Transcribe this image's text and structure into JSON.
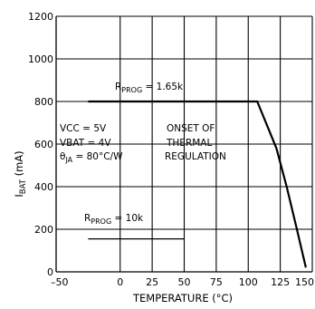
{
  "chart_data": {
    "type": "line",
    "title": "",
    "xlabel": "TEMPERATURE (°C)",
    "ylabel_main": "I",
    "ylabel_sub": "BAT",
    "ylabel_unit": " (mA)",
    "xlim": [
      -50,
      150
    ],
    "ylim": [
      0,
      1200
    ],
    "x_ticks": [
      -50,
      0,
      25,
      50,
      75,
      100,
      125,
      150
    ],
    "x_tick_labels": [
      "–50",
      "0",
      "25",
      "50",
      "75",
      "100",
      "125",
      "150"
    ],
    "y_ticks": [
      0,
      200,
      400,
      600,
      800,
      1000,
      1200
    ],
    "y_tick_labels": [
      "0",
      "200",
      "400",
      "600",
      "800",
      "1000",
      "1200"
    ],
    "grid": true,
    "series": [
      {
        "name": "RPROG = 1.65k",
        "x": [
          -25,
          107,
          122,
          130,
          138,
          145
        ],
        "y": [
          800,
          800,
          580,
          400,
          200,
          20
        ]
      },
      {
        "name": "RPROG = 10k",
        "x": [
          -25,
          50
        ],
        "y": [
          155,
          155
        ]
      }
    ],
    "annotations": {
      "series1_label": {
        "pre": "R",
        "sub": "PROG",
        "post": " = 1.65k"
      },
      "series2_label": {
        "pre": "R",
        "sub": "PROG",
        "post": " = 10k"
      },
      "cond1": "VCC = 5V",
      "cond2": "VBAT = 4V",
      "cond3": {
        "pre": "θ",
        "sub": "JA",
        "post": " = 80°C/W"
      },
      "onset1": "ONSET OF",
      "onset2": "THERMAL",
      "onset3": "REGULATION"
    }
  }
}
